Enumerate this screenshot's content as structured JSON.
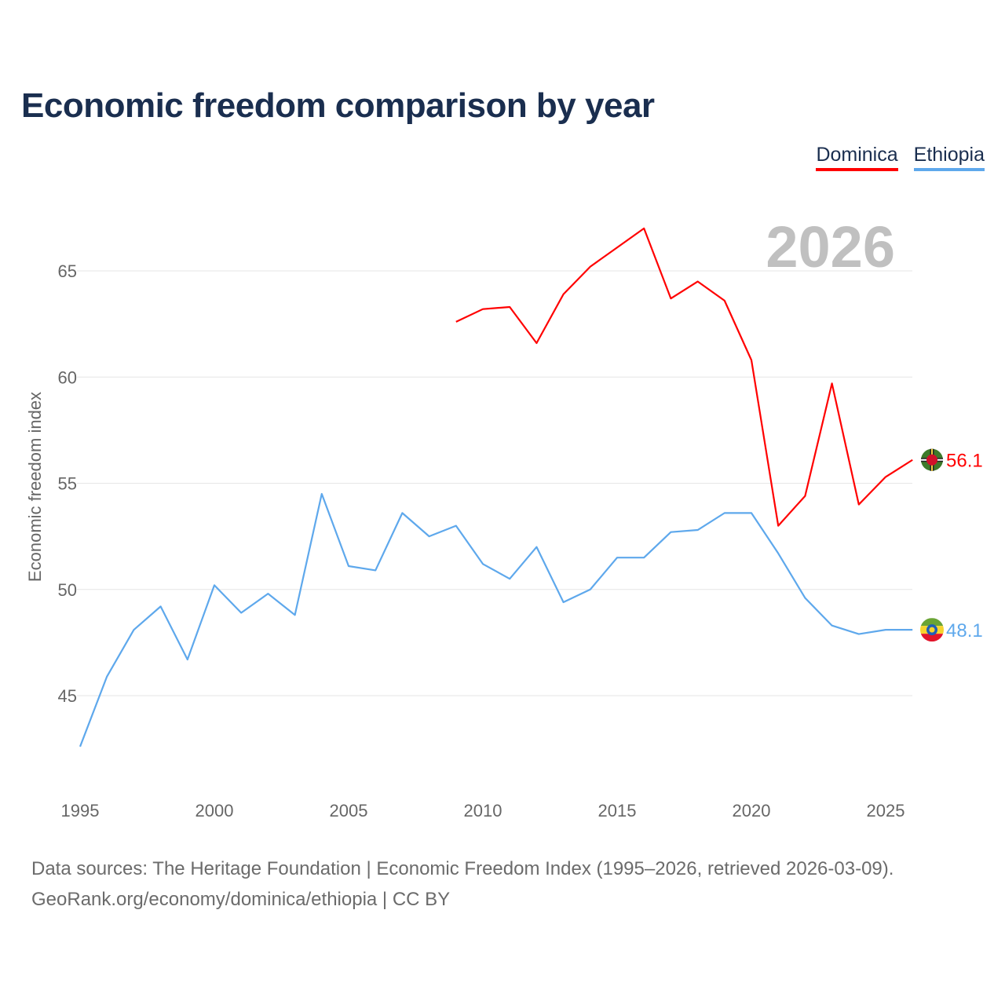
{
  "title": "Economic freedom comparison by year",
  "legend": [
    {
      "name": "Dominica",
      "color": "#ff0000"
    },
    {
      "name": "Ethiopia",
      "color": "#5ea8ec"
    }
  ],
  "footer": {
    "line1": "Data sources: The Heritage Foundation | Economic Freedom Index (1995–2026, retrieved 2026-03-09).",
    "line2": "GeoRank.org/economy/dominica/ethiopia | CC BY"
  },
  "chart_data": {
    "type": "line",
    "title": "Economic freedom comparison by year",
    "ylabel": "Economic freedom index",
    "xlabel": "",
    "year_watermark": "2026",
    "xlim": [
      1995,
      2026
    ],
    "ylim": [
      41.5,
      68
    ],
    "xticks": [
      1995,
      2000,
      2005,
      2010,
      2015,
      2020,
      2025
    ],
    "yticks": [
      45,
      50,
      55,
      60,
      65
    ],
    "grid": true,
    "legend_position": "top-right",
    "series": [
      {
        "name": "Dominica",
        "color": "#ff0000",
        "end_label": "56.1",
        "x": [
          2009,
          2010,
          2011,
          2012,
          2013,
          2014,
          2015,
          2016,
          2017,
          2018,
          2019,
          2020,
          2021,
          2022,
          2023,
          2024,
          2025,
          2026
        ],
        "values": [
          62.6,
          63.2,
          63.3,
          61.6,
          63.9,
          65.2,
          66.1,
          67.0,
          63.7,
          64.5,
          63.6,
          60.8,
          53.0,
          54.4,
          59.7,
          54.0,
          55.3,
          56.1
        ]
      },
      {
        "name": "Ethiopia",
        "color": "#5ea8ec",
        "end_label": "48.1",
        "x": [
          1995,
          1996,
          1997,
          1998,
          1999,
          2000,
          2001,
          2002,
          2003,
          2004,
          2005,
          2006,
          2007,
          2008,
          2009,
          2010,
          2011,
          2012,
          2013,
          2014,
          2015,
          2016,
          2017,
          2018,
          2019,
          2020,
          2021,
          2022,
          2023,
          2024,
          2025,
          2026
        ],
        "values": [
          42.6,
          45.9,
          48.1,
          49.2,
          46.7,
          50.2,
          48.9,
          49.8,
          48.8,
          54.5,
          51.1,
          50.9,
          53.6,
          52.5,
          53.0,
          51.2,
          50.5,
          52.0,
          49.4,
          50.0,
          51.5,
          51.5,
          52.7,
          52.8,
          53.6,
          53.6,
          51.7,
          49.6,
          48.3,
          47.9,
          48.1,
          48.1
        ]
      }
    ]
  }
}
